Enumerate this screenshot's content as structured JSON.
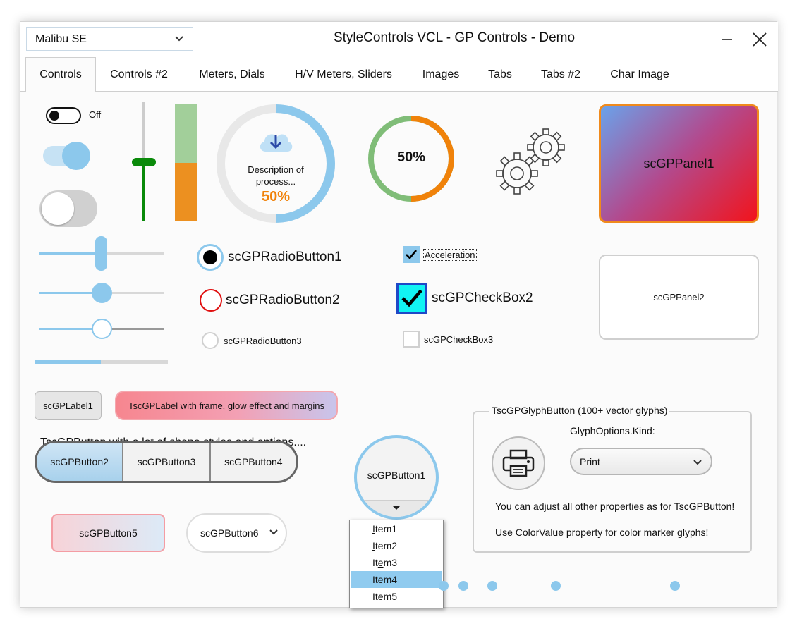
{
  "window": {
    "title": "StyleControls VCL - GP Controls - Demo"
  },
  "style_select": {
    "value": "Malibu SE"
  },
  "tabs": [
    {
      "label": "Controls"
    },
    {
      "label": "Controls #2"
    },
    {
      "label": "Meters, Dials"
    },
    {
      "label": "H/V Meters, Sliders"
    },
    {
      "label": "Images"
    },
    {
      "label": "Tabs"
    },
    {
      "label": "Tabs #2"
    },
    {
      "label": "Char Image"
    }
  ],
  "switches": {
    "switch1_label": "Off"
  },
  "progress_circle1": {
    "description": "Description of process...",
    "value_text": "50%",
    "value": 0.5
  },
  "progress_circle2": {
    "value_text": "50%",
    "value": 0.5
  },
  "vertical_meter": {
    "value": 0.5
  },
  "vertical_slider": {
    "value": 0.5
  },
  "h_sliders": [
    {
      "value": 0.5
    },
    {
      "value": 0.5
    },
    {
      "value": 0.5
    },
    {
      "value": 0.5
    }
  ],
  "panel1": {
    "caption": "scGPPanel1"
  },
  "panel2": {
    "caption": "scGPPanel2"
  },
  "radios": [
    {
      "label": "scGPRadioButton1",
      "checked": true
    },
    {
      "label": "scGPRadioButton2",
      "checked": false
    },
    {
      "label": "scGPRadioButton3",
      "checked": false
    }
  ],
  "checkboxes": [
    {
      "label": "Acceleration",
      "checked": true
    },
    {
      "label": "scGPCheckBox2",
      "checked": true
    },
    {
      "label": "scGPCheckBox3",
      "checked": false
    }
  ],
  "labels": {
    "label1": "scGPLabel1",
    "label2": "TscGPLabel with frame, glow effect and margins",
    "button_caption": "TscGPButton with a lot of shape styles and options...."
  },
  "buttons": {
    "b2": "scGPButton2",
    "b3": "scGPButton3",
    "b4": "scGPButton4",
    "b5": "scGPButton5",
    "b6": "scGPButton6",
    "b1": "scGPButton1"
  },
  "dropdown": {
    "items": [
      {
        "pre": "",
        "u": "I",
        "post": "tem1"
      },
      {
        "pre": "",
        "u": "I",
        "post": "tem2"
      },
      {
        "pre": "It",
        "u": "e",
        "post": "m3"
      },
      {
        "pre": "Ite",
        "u": "m",
        "post": "4"
      },
      {
        "pre": "Item",
        "u": "5",
        "post": ""
      }
    ],
    "selected_index": 3
  },
  "glyph_group": {
    "caption": "TscGPGlyphButton (100+ vector glyphs)",
    "kind_label": "GlyphOptions.Kind:",
    "kind_value": "Print",
    "note1": "You can adjust all other properties as for TscGPButton!",
    "note2": "Use ColorValue property for color marker glyphs!"
  },
  "colors": {
    "accent": "#8cc8ec",
    "orange": "#f0820a",
    "green_track": "#80bd78",
    "meter_green": "#a2cf9a",
    "meter_orange": "#ec9020",
    "slider_green": "#0a8a0a"
  }
}
